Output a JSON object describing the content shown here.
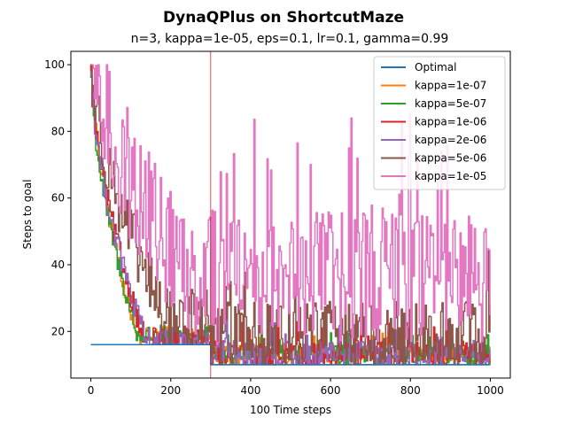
{
  "chart_data": {
    "type": "line",
    "title": "DynaQPlus on ShortcutMaze",
    "subtitle": "n=3, kappa=1e-05, eps=0.1, lr=0.1, gamma=0.99",
    "xlabel": "100 Time steps",
    "ylabel": "Steps to goal",
    "xlim": [
      -50,
      1050
    ],
    "ylim": [
      6,
      104
    ],
    "xticks": [
      0,
      200,
      400,
      600,
      800,
      1000
    ],
    "yticks": [
      20,
      40,
      60,
      80,
      100
    ],
    "grid": false,
    "legend_position": "top-right",
    "annotations": [
      {
        "type": "vertical-line",
        "x": 300,
        "color": "#d62728"
      }
    ],
    "x_range": [
      0,
      1000
    ],
    "series": [
      {
        "name": "Optimal",
        "color": "#1f77b4",
        "points": [
          [
            0,
            16
          ],
          [
            300,
            16
          ],
          [
            300,
            10
          ],
          [
            1000,
            10
          ]
        ]
      },
      {
        "name": "kappa=1e-07",
        "color": "#ff7f0e",
        "start": 100,
        "early_decay_to": 20,
        "early_decay_end": 110,
        "post_shortcut_level": 12,
        "noise": 3
      },
      {
        "name": "kappa=5e-07",
        "color": "#2ca02c",
        "start": 96,
        "early_decay_to": 20,
        "early_decay_end": 110,
        "post_shortcut_level": 12,
        "noise": 3
      },
      {
        "name": "kappa=1e-06",
        "color": "#d62728",
        "start": 98,
        "early_decay_to": 18,
        "early_decay_end": 130,
        "post_shortcut_level": 12,
        "noise": 4
      },
      {
        "name": "kappa=2e-06",
        "color": "#9467bd",
        "start": 98,
        "early_decay_to": 18,
        "early_decay_end": 130,
        "post_shortcut_level": 12,
        "noise": 4
      },
      {
        "name": "kappa=5e-06",
        "color": "#8c564b",
        "start": 100,
        "early_decay_to": 22,
        "early_decay_end": 180,
        "post_shortcut_level": 16,
        "noise": 10
      },
      {
        "name": "kappa=1e-05",
        "color": "#e377c2",
        "start": 100,
        "early_decay_to": 35,
        "early_decay_end": 220,
        "post_shortcut_level": 30,
        "noise": 20
      }
    ]
  }
}
